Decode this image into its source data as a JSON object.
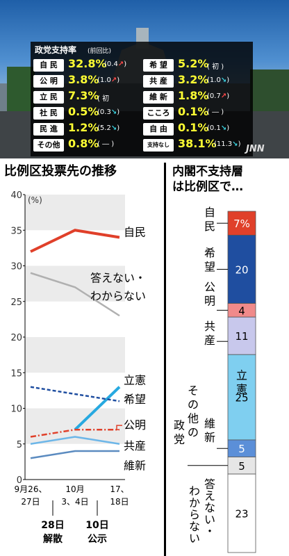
{
  "poll": {
    "title": "政党支持率",
    "subtitle": "(前回比)",
    "parties": [
      {
        "name": "自 民",
        "value": "32.8%",
        "prev": "(0.4",
        "dir": "up"
      },
      {
        "name": "希 望",
        "value": "5.2%",
        "prev": "(  初  )",
        "dir": ""
      },
      {
        "name": "公 明",
        "value": "3.8%",
        "prev": "(1.0",
        "dir": "up"
      },
      {
        "name": "共 産",
        "value": "3.2%",
        "prev": "(1.0",
        "dir": "down"
      },
      {
        "name": "立 民",
        "value": "7.3%",
        "prev": "(  初",
        "dir": ""
      },
      {
        "name": "維 新",
        "value": "1.8%",
        "prev": "(0.7",
        "dir": "up"
      },
      {
        "name": "社 民",
        "value": "0.5%",
        "prev": "(0.3",
        "dir": "down"
      },
      {
        "name": "こころ",
        "value": "0.1%",
        "prev": "( ― )",
        "dir": ""
      },
      {
        "name": "民 進",
        "value": "1.2%",
        "prev": "(5.2",
        "dir": "down"
      },
      {
        "name": "自 由",
        "value": "0.1%",
        "prev": "(0.1",
        "dir": "down"
      },
      {
        "name": "その他",
        "value": "0.8%",
        "prev": "( ― )",
        "dir": ""
      },
      {
        "name": "支持なし",
        "value": "38.1%",
        "prev": "(11.3",
        "dir": "down"
      }
    ],
    "logo": "JNN"
  },
  "chart_data": [
    {
      "type": "line",
      "title": "比例区投票先の推移",
      "ylabel": "(%)",
      "ylim": [
        0,
        40
      ],
      "yticks": [
        0,
        5,
        10,
        15,
        20,
        25,
        30,
        35,
        40
      ],
      "x": [
        "9月26、27日",
        "10月3、4日",
        "17、18日"
      ],
      "xlabel_lines": [
        [
          "9月26、",
          "27日"
        ],
        [
          "10月",
          "3、4日"
        ],
        [
          "17、",
          "18日"
        ]
      ],
      "events": [
        {
          "lines": [
            "28日",
            "解散"
          ]
        },
        {
          "lines": [
            "10日",
            "公示"
          ]
        }
      ],
      "series": [
        {
          "name": "自民",
          "values": [
            32,
            35,
            34
          ],
          "color": "#e0402a",
          "style": "solid"
        },
        {
          "name": "答えない・わからない",
          "values": [
            29,
            27,
            23
          ],
          "color": "#b0b0b0",
          "style": "solid"
        },
        {
          "name": "立憲",
          "values": [
            null,
            7,
            13
          ],
          "color": "#27a9e0",
          "style": "solid"
        },
        {
          "name": "希望",
          "values": [
            13,
            12,
            11
          ],
          "color": "#1f4ea0",
          "style": "dashed"
        },
        {
          "name": "公明",
          "values": [
            6,
            7,
            7
          ],
          "color": "#e0402a",
          "style": "dashdot"
        },
        {
          "name": "共産",
          "values": [
            5,
            6,
            5
          ],
          "color": "#6cb6e8",
          "style": "solid"
        },
        {
          "name": "維新",
          "values": [
            3,
            4,
            4
          ],
          "color": "#5b8bc0",
          "style": "solid"
        }
      ]
    },
    {
      "type": "bar",
      "title": "内閣不支持層は比例区で…",
      "stacked": true,
      "total": 100,
      "segments": [
        {
          "name": "自民",
          "value": 7,
          "label": "7%",
          "color": "#e0402a",
          "text_color": "#ffffff"
        },
        {
          "name": "希望",
          "value": 20,
          "label": "20",
          "color": "#1f4ea0",
          "text_color": "#ffffff"
        },
        {
          "name": "公明",
          "value": 4,
          "label": "4",
          "color": "#f08a8a",
          "text_color": "#000000"
        },
        {
          "name": "共産",
          "value": 11,
          "label": "11",
          "color": "#c8c8ec",
          "text_color": "#000000"
        },
        {
          "name": "立憲",
          "value": 25,
          "label": "25",
          "color": "#7fcff0",
          "text_color": "#000000"
        },
        {
          "name": "維新",
          "value": 5,
          "label": "5",
          "color": "#5b8fd8",
          "text_color": "#ffffff"
        },
        {
          "name": "その他の政党",
          "value": 5,
          "label": "5",
          "color": "#e6e6e6",
          "text_color": "#000000"
        },
        {
          "name": "答えない・わからない",
          "value": 23,
          "label": "23",
          "color": "#ffffff",
          "text_color": "#000000"
        }
      ]
    }
  ]
}
